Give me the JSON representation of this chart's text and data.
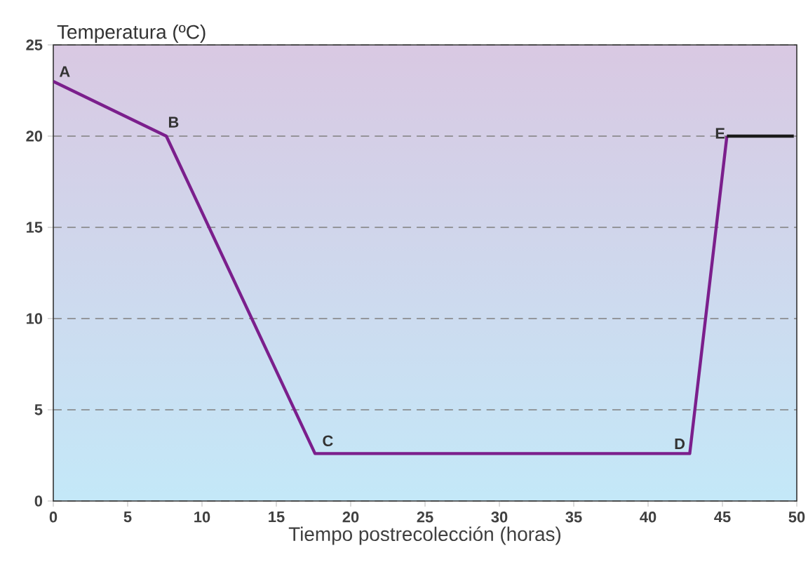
{
  "chart_data": {
    "type": "line",
    "xlabel": "Tiempo postrecolección (horas)",
    "ylabel": "Temperatura (ºC)",
    "xlim": [
      0,
      50
    ],
    "ylim": [
      0,
      25
    ],
    "xticks": [
      0,
      5,
      10,
      15,
      20,
      25,
      30,
      35,
      40,
      45,
      50
    ],
    "yticks": [
      0,
      5,
      10,
      15,
      20,
      25
    ],
    "grid": "y",
    "marker": "none",
    "line_style": "solid",
    "series": [
      {
        "color": "#7b1f8c",
        "x": [
          0,
          7.6,
          17.6,
          42.8,
          45.3
        ],
        "values": [
          23,
          20,
          2.6,
          2.6,
          20
        ]
      },
      {
        "color": "#1a1a1a",
        "x": [
          45.3,
          49.8
        ],
        "values": [
          20,
          20
        ]
      }
    ],
    "annotations": [
      {
        "text": "A",
        "x": 0,
        "y": 23
      },
      {
        "text": "B",
        "x": 7.6,
        "y": 20
      },
      {
        "text": "C",
        "x": 17.6,
        "y": 2.6
      },
      {
        "text": "D",
        "x": 42.8,
        "y": 2.6
      },
      {
        "text": "E",
        "x": 45.3,
        "y": 20
      }
    ]
  }
}
